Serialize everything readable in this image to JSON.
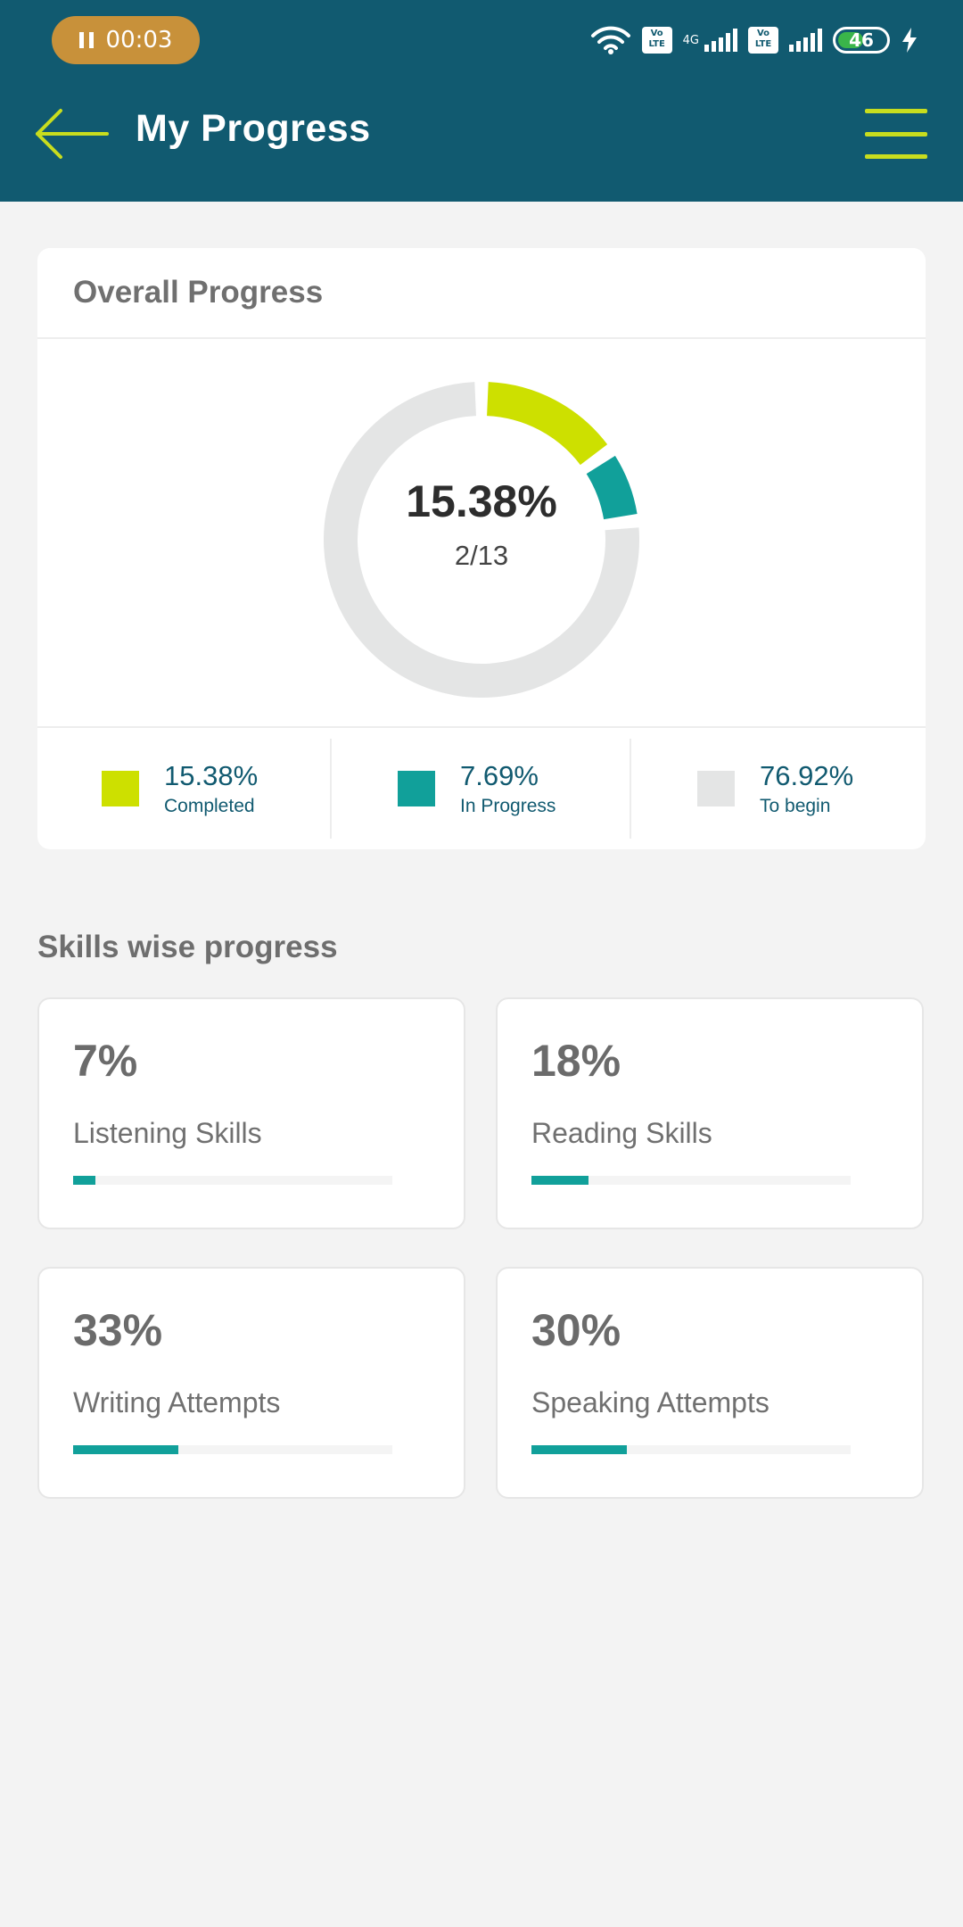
{
  "status_bar": {
    "recording_time": "00:03",
    "network_label": "4G",
    "volte_label": "Vo LTE",
    "battery_level": "46"
  },
  "header": {
    "title": "My Progress",
    "back_icon": "arrow-left-icon",
    "menu_icon": "hamburger-menu-icon"
  },
  "colors": {
    "header_bg": "#115a70",
    "accent_lime": "#c8dd1e",
    "completed": "#cde000",
    "in_progress": "#11a09a",
    "to_begin": "#e4e5e5"
  },
  "overall": {
    "title": "Overall Progress",
    "percent": "15.38%",
    "count": "2/13",
    "completed_fraction": 0.1538,
    "in_progress_fraction": 0.0769,
    "legend": [
      {
        "value": "15.38%",
        "label": "Completed",
        "color": "#cde000"
      },
      {
        "value": "7.69%",
        "label": "In Progress",
        "color": "#11a09a"
      },
      {
        "value": "76.92%",
        "label": "To begin",
        "color": "#e4e5e5"
      }
    ]
  },
  "skills": {
    "heading": "Skills wise progress",
    "items": [
      {
        "percent": "7%",
        "name": "Listening Skills",
        "progress": 7
      },
      {
        "percent": "18%",
        "name": "Reading Skills",
        "progress": 18
      },
      {
        "percent": "33%",
        "name": "Writing Attempts",
        "progress": 33
      },
      {
        "percent": "30%",
        "name": "Speaking Attempts",
        "progress": 30
      }
    ]
  }
}
